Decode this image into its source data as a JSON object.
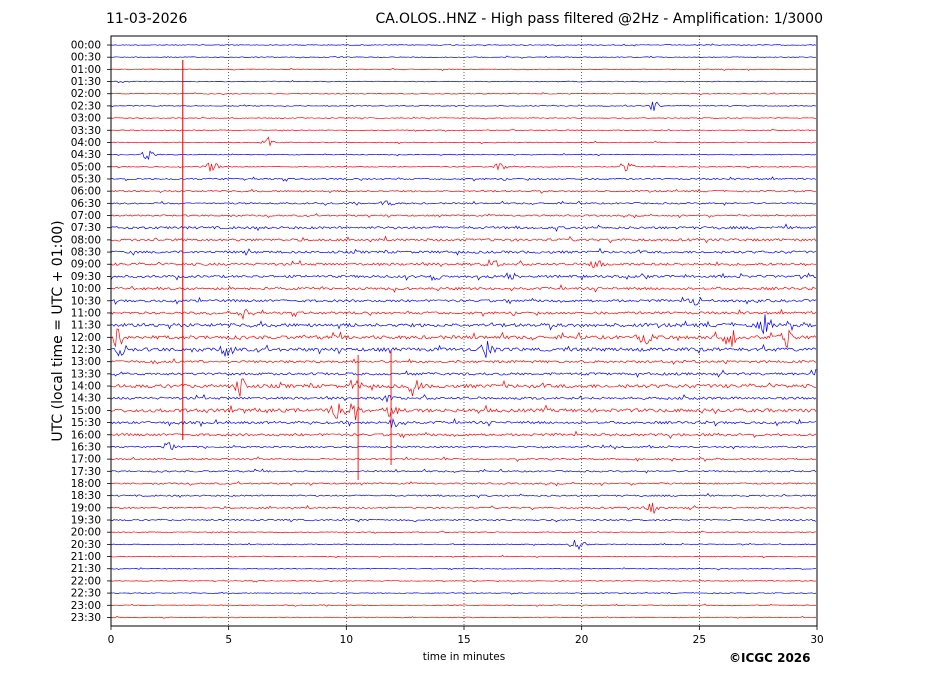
{
  "header": {
    "date": "11-03-2026",
    "title": "CA.OLOS..HNZ - High pass filtered @2Hz - Amplification: 1/3000"
  },
  "footer": {
    "copyright": "©ICGC 2026"
  },
  "colors": {
    "red_trace": "#ff0000",
    "blue_trace": "#0000ff",
    "axes": "#000000"
  },
  "chart_data": {
    "type": "line",
    "subtype": "helicorder",
    "title": "CA.OLOS..HNZ - High pass filtered @2Hz - Amplification: 1/3000",
    "xlabel": "time in minutes",
    "ylabel": "UTC (local time = UTC + 01:00)",
    "xlim": [
      0,
      30
    ],
    "x_ticks": [
      "0",
      "5",
      "10",
      "15",
      "20",
      "25",
      "30"
    ],
    "vertical_grid_minutes": [
      5,
      10,
      15,
      20,
      25
    ],
    "grid": "vertical dotted at 5-minute intervals",
    "trace_color_alternation": [
      "red",
      "blue"
    ],
    "rows": [
      {
        "label": "00:00",
        "color": "blue",
        "activity": "quiet"
      },
      {
        "label": "00:30",
        "color": "blue",
        "activity": "quiet"
      },
      {
        "label": "01:00",
        "color": "red",
        "activity": "quiet"
      },
      {
        "label": "01:30",
        "color": "blue",
        "activity": "quiet"
      },
      {
        "label": "02:00",
        "color": "red",
        "activity": "quiet"
      },
      {
        "label": "02:30",
        "color": "blue",
        "activity": "quiet",
        "events_min": [
          23.1
        ]
      },
      {
        "label": "03:00",
        "color": "red",
        "activity": "quiet"
      },
      {
        "label": "03:30",
        "color": "red",
        "activity": "quiet"
      },
      {
        "label": "04:00",
        "color": "red",
        "activity": "quiet",
        "events_min": [
          6.7
        ]
      },
      {
        "label": "04:30",
        "color": "blue",
        "activity": "quiet",
        "events_min": [
          1.6
        ]
      },
      {
        "label": "05:00",
        "color": "red",
        "activity": "quiet",
        "events_min": [
          4.3,
          16.6,
          21.9
        ]
      },
      {
        "label": "05:30",
        "color": "blue",
        "activity": "low"
      },
      {
        "label": "06:00",
        "color": "red",
        "activity": "low"
      },
      {
        "label": "06:30",
        "color": "blue",
        "activity": "low",
        "events_min": [
          11.8
        ]
      },
      {
        "label": "07:00",
        "color": "red",
        "activity": "low"
      },
      {
        "label": "07:30",
        "color": "blue",
        "activity": "moderate"
      },
      {
        "label": "08:00",
        "color": "red",
        "activity": "moderate"
      },
      {
        "label": "08:30",
        "color": "blue",
        "activity": "moderate"
      },
      {
        "label": "09:00",
        "color": "red",
        "activity": "moderate",
        "events_min": [
          16.2,
          20.6
        ]
      },
      {
        "label": "09:30",
        "color": "blue",
        "activity": "moderate",
        "events_min": [
          13.8,
          17.0
        ]
      },
      {
        "label": "10:00",
        "color": "red",
        "activity": "moderate"
      },
      {
        "label": "10:30",
        "color": "blue",
        "activity": "moderate",
        "events_min": [
          24.8
        ]
      },
      {
        "label": "11:00",
        "color": "red",
        "activity": "moderate",
        "events_min": [
          5.6
        ]
      },
      {
        "label": "11:30",
        "color": "blue",
        "activity": "high",
        "events_min": [
          27.8
        ]
      },
      {
        "label": "12:00",
        "color": "red",
        "activity": "high",
        "events_min": [
          0.3,
          22.7,
          26.3,
          28.7
        ]
      },
      {
        "label": "12:30",
        "color": "blue",
        "activity": "high",
        "events_min": [
          0.3,
          5.0,
          16.0
        ]
      },
      {
        "label": "13:00",
        "color": "red",
        "activity": "moderate"
      },
      {
        "label": "13:30",
        "color": "blue",
        "activity": "moderate",
        "events_min": [
          29.9
        ]
      },
      {
        "label": "14:00",
        "color": "red",
        "activity": "high",
        "events_min": [
          5.5,
          10.3,
          12.9
        ]
      },
      {
        "label": "14:30",
        "color": "blue",
        "activity": "moderate",
        "events_min": [
          11.8
        ]
      },
      {
        "label": "15:00",
        "color": "red",
        "activity": "high",
        "events_min": [
          9.6,
          10.3,
          11.9
        ]
      },
      {
        "label": "15:30",
        "color": "blue",
        "activity": "moderate",
        "events_min": [
          12.0
        ]
      },
      {
        "label": "16:00",
        "color": "red",
        "activity": "moderate"
      },
      {
        "label": "16:30",
        "color": "blue",
        "activity": "low",
        "events_min": [
          2.5
        ]
      },
      {
        "label": "17:00",
        "color": "red",
        "activity": "low"
      },
      {
        "label": "17:30",
        "color": "blue",
        "activity": "low"
      },
      {
        "label": "18:00",
        "color": "red",
        "activity": "low"
      },
      {
        "label": "18:30",
        "color": "blue",
        "activity": "low"
      },
      {
        "label": "19:00",
        "color": "red",
        "activity": "low",
        "events_min": [
          23.0
        ]
      },
      {
        "label": "19:30",
        "color": "blue",
        "activity": "low"
      },
      {
        "label": "20:00",
        "color": "red",
        "activity": "quiet"
      },
      {
        "label": "20:30",
        "color": "blue",
        "activity": "quiet",
        "events_min": [
          19.8
        ]
      },
      {
        "label": "21:00",
        "color": "red",
        "activity": "quiet"
      },
      {
        "label": "21:30",
        "color": "blue",
        "activity": "quiet"
      },
      {
        "label": "22:00",
        "color": "red",
        "activity": "quiet"
      },
      {
        "label": "22:30",
        "color": "blue",
        "activity": "quiet"
      },
      {
        "label": "23:00",
        "color": "red",
        "activity": "quiet"
      },
      {
        "label": "23:30",
        "color": "red",
        "activity": "quiet"
      }
    ]
  }
}
